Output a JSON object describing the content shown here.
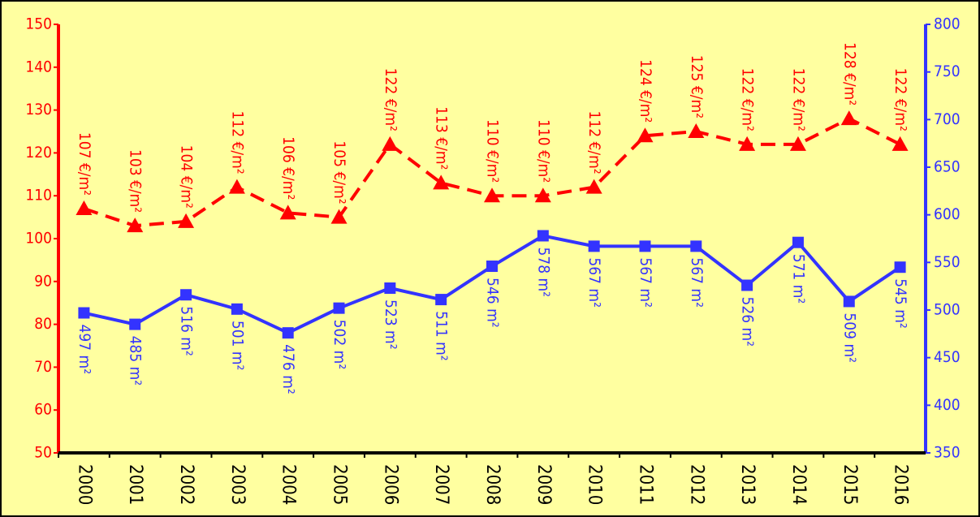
{
  "chart_data": {
    "type": "line",
    "categories": [
      "2000",
      "2001",
      "2002",
      "2003",
      "2004",
      "2005",
      "2006",
      "2007",
      "2008",
      "2009",
      "2010",
      "2011",
      "2012",
      "2013",
      "2014",
      "2015",
      "2016"
    ],
    "series": [
      {
        "color": "#ff0000",
        "values": [
          107,
          103,
          104,
          112,
          106,
          105,
          122,
          113,
          110,
          110,
          112,
          124,
          125,
          122,
          122,
          128,
          122
        ],
        "value_labels": [
          "107 €/m²",
          "103 €/m²",
          "104 €/m²",
          "112 €/m²",
          "106 €/m²",
          "105 €/m²",
          "122 €/m²",
          "113 €/m²",
          "110 €/m²",
          "110 €/m²",
          "112 €/m²",
          "124 €/m²",
          "125 €/m²",
          "122 €/m²",
          "122 €/m²",
          "128 €/m²",
          "122 €/m²"
        ]
      },
      {
        "color": "#3333ff",
        "axis": "y2",
        "values": [
          497,
          485,
          516,
          501,
          476,
          502,
          523,
          511,
          546,
          578,
          567,
          567,
          567,
          526,
          571,
          509,
          545
        ],
        "value_labels": [
          "497 m²",
          "485 m²",
          "516 m²",
          "501 m²",
          "476 m²",
          "502 m²",
          "523 m²",
          "511 m²",
          "546 m²",
          "578 m²",
          "567 m²",
          "567 m²",
          "567 m²",
          "526 m²",
          "571 m²",
          "509 m²",
          "545 m²"
        ]
      }
    ],
    "ylim": [
      50,
      150
    ],
    "yticks": [
      50,
      60,
      70,
      80,
      90,
      100,
      110,
      120,
      130,
      140,
      150
    ],
    "y2lim": [
      350,
      800
    ],
    "y2ticks": [
      350,
      400,
      450,
      500,
      550,
      600,
      650,
      700,
      750,
      800
    ]
  }
}
